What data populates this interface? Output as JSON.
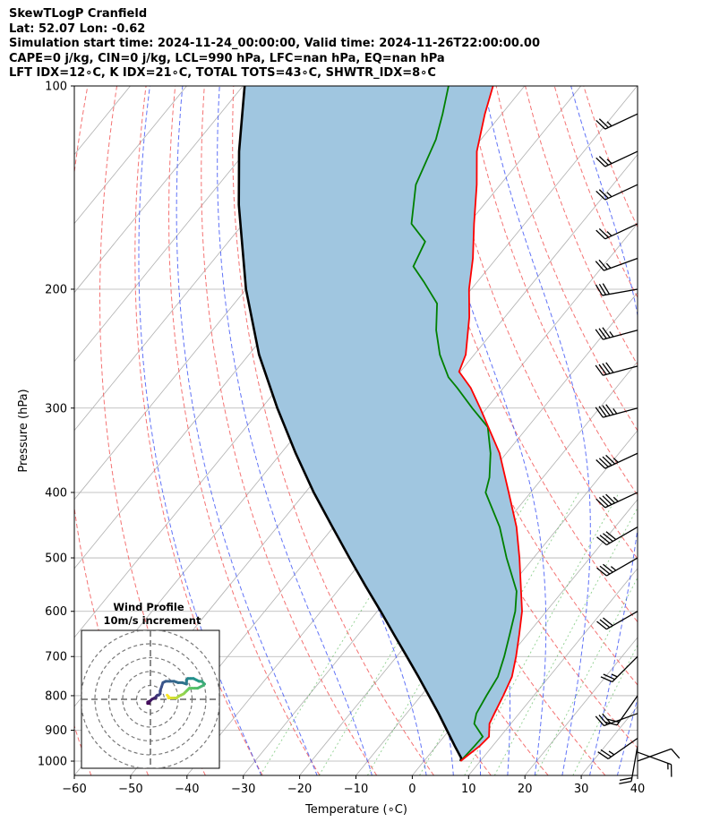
{
  "header": {
    "line1": "SkewTLogP Cranfield",
    "line2": "Lat: 52.07   Lon: -0.62",
    "line3": "Simulation start time: 2024-11-24_00:00:00, Valid time: 2024-11-26T22:00:00.00",
    "line4": "CAPE=0 j/kg, CIN=0 j/kg, LCL=990 hPa, LFC=nan hPa, EQ=nan hPa",
    "line5": "LFT IDX=12∘C, K IDX=21∘C, TOTAL TOTS=43∘C, SHWTR_IDX=8∘C"
  },
  "chart_data": {
    "type": "line",
    "title": "SkewTLogP Cranfield",
    "xlabel": "Temperature (∘C)",
    "ylabel": "Pressure (hPa)",
    "xlim": [
      -60,
      40
    ],
    "ylim": [
      1050,
      100
    ],
    "y_scale": "log",
    "skew": true,
    "grid": true,
    "x_ticks": [
      -60,
      -50,
      -40,
      -30,
      -20,
      -10,
      0,
      10,
      20,
      30,
      40
    ],
    "x_tick_labels": [
      "−60",
      "−50",
      "−40",
      "−30",
      "−20",
      "−10",
      "0",
      "10",
      "20",
      "30",
      "40"
    ],
    "y_ticks": [
      1000,
      900,
      800,
      700,
      600,
      500,
      400,
      300,
      200,
      100
    ],
    "y_tick_labels": [
      "1000",
      "900",
      "800",
      "700",
      "600",
      "500",
      "400",
      "300",
      "200",
      "100"
    ],
    "series": [
      {
        "key": "temperature",
        "color": "#ff0000",
        "points": [
          [
            1000,
            6.5
          ],
          [
            950,
            7.7
          ],
          [
            920,
            8.0
          ],
          [
            880,
            6.2
          ],
          [
            850,
            5.6
          ],
          [
            800,
            4.6
          ],
          [
            750,
            3.4
          ],
          [
            700,
            1.2
          ],
          [
            650,
            -1.4
          ],
          [
            600,
            -4.3
          ],
          [
            560,
            -7.4
          ],
          [
            500,
            -12.5
          ],
          [
            450,
            -17.5
          ],
          [
            400,
            -23.9
          ],
          [
            350,
            -31.2
          ],
          [
            300,
            -41.2
          ],
          [
            280,
            -45.8
          ],
          [
            265,
            -50.2
          ],
          [
            250,
            -51.5
          ],
          [
            220,
            -56.3
          ],
          [
            200,
            -60.4
          ],
          [
            180,
            -64.2
          ],
          [
            160,
            -69.0
          ],
          [
            140,
            -74.2
          ],
          [
            125,
            -79.0
          ],
          [
            110,
            -83.0
          ],
          [
            100,
            -85.6
          ]
        ]
      },
      {
        "key": "dewpoint",
        "color": "#008000",
        "points": [
          [
            1000,
            6.5
          ],
          [
            950,
            6.8
          ],
          [
            920,
            6.9
          ],
          [
            880,
            3.5
          ],
          [
            850,
            2.4
          ],
          [
            800,
            1.6
          ],
          [
            750,
            0.9
          ],
          [
            700,
            -0.9
          ],
          [
            650,
            -3.1
          ],
          [
            600,
            -5.5
          ],
          [
            560,
            -8.2
          ],
          [
            500,
            -14.8
          ],
          [
            450,
            -20.5
          ],
          [
            400,
            -28.0
          ],
          [
            380,
            -29.5
          ],
          [
            350,
            -32.8
          ],
          [
            320,
            -37.1
          ],
          [
            300,
            -42.6
          ],
          [
            280,
            -48.2
          ],
          [
            270,
            -51.3
          ],
          [
            250,
            -56.1
          ],
          [
            230,
            -60.3
          ],
          [
            210,
            -64.0
          ],
          [
            195,
            -69.5
          ],
          [
            185,
            -73.6
          ],
          [
            170,
            -75.1
          ],
          [
            160,
            -80.1
          ],
          [
            140,
            -85.0
          ],
          [
            120,
            -88.0
          ],
          [
            110,
            -90.5
          ],
          [
            100,
            -93.5
          ]
        ]
      },
      {
        "key": "parcel",
        "color": "#000000",
        "points": [
          [
            1000,
            6.5
          ],
          [
            990,
            6.2
          ],
          [
            950,
            3.3
          ],
          [
            900,
            -0.4
          ],
          [
            850,
            -4.3
          ],
          [
            800,
            -8.6
          ],
          [
            750,
            -13.2
          ],
          [
            700,
            -18.2
          ],
          [
            650,
            -23.6
          ],
          [
            600,
            -29.4
          ],
          [
            550,
            -35.8
          ],
          [
            500,
            -42.7
          ],
          [
            450,
            -50.2
          ],
          [
            400,
            -58.5
          ],
          [
            350,
            -67.4
          ],
          [
            300,
            -77.2
          ],
          [
            250,
            -88.2
          ],
          [
            200,
            -100.0
          ],
          [
            150,
            -113.5
          ],
          [
            125,
            -121.2
          ],
          [
            100,
            -129.7
          ]
        ]
      }
    ],
    "fill_between": {
      "between": [
        "temperature",
        "parcel"
      ],
      "color": "#a0c6e0"
    },
    "dry_adiabats_c": [
      -60,
      -50,
      -40,
      -30,
      -20,
      -10,
      0,
      10,
      20,
      30,
      40,
      50,
      60,
      70,
      80,
      90,
      100,
      110,
      120
    ],
    "moist_adiabats_c": [
      -30,
      -20,
      -10,
      0,
      5,
      10,
      15,
      20,
      25,
      30,
      35
    ],
    "mixing_ratios_gkg": [
      0.4,
      1.0,
      2.0,
      4.0,
      7.0,
      10.0,
      16.0,
      24.0
    ],
    "wind_barbs": [
      {
        "p": 1000,
        "speed_kt": 10,
        "dir_deg": 70
      },
      {
        "p": 970,
        "speed_kt": 15,
        "dir_deg": 110
      },
      {
        "p": 950,
        "speed_kt": 20,
        "dir_deg": 190
      },
      {
        "p": 925,
        "speed_kt": 25,
        "dir_deg": 235
      },
      {
        "p": 850,
        "speed_kt": 30,
        "dir_deg": 250
      },
      {
        "p": 800,
        "speed_kt": 20,
        "dir_deg": 215
      },
      {
        "p": 700,
        "speed_kt": 25,
        "dir_deg": 225
      },
      {
        "p": 600,
        "speed_kt": 30,
        "dir_deg": 240
      },
      {
        "p": 500,
        "speed_kt": 35,
        "dir_deg": 240
      },
      {
        "p": 450,
        "speed_kt": 40,
        "dir_deg": 240
      },
      {
        "p": 400,
        "speed_kt": 45,
        "dir_deg": 245
      },
      {
        "p": 350,
        "speed_kt": 45,
        "dir_deg": 245
      },
      {
        "p": 300,
        "speed_kt": 45,
        "dir_deg": 255
      },
      {
        "p": 260,
        "speed_kt": 40,
        "dir_deg": 255
      },
      {
        "p": 230,
        "speed_kt": 35,
        "dir_deg": 255
      },
      {
        "p": 200,
        "speed_kt": 30,
        "dir_deg": 260
      },
      {
        "p": 180,
        "speed_kt": 25,
        "dir_deg": 250
      },
      {
        "p": 160,
        "speed_kt": 25,
        "dir_deg": 245
      },
      {
        "p": 140,
        "speed_kt": 25,
        "dir_deg": 245
      },
      {
        "p": 125,
        "speed_kt": 25,
        "dir_deg": 245
      },
      {
        "p": 110,
        "speed_kt": 25,
        "dir_deg": 245
      }
    ],
    "hodograph": {
      "title": "Wind Profile",
      "subtitle": "10m/s increment",
      "ring_spacing_ms": 10,
      "points_uv": [
        [
          -1,
          -3
        ],
        [
          -2,
          -3
        ],
        [
          -2,
          -2
        ],
        [
          0,
          -1
        ],
        [
          1,
          0
        ],
        [
          3,
          1
        ],
        [
          4,
          1
        ],
        [
          4,
          2
        ],
        [
          5,
          3
        ],
        [
          6,
          3
        ],
        [
          7,
          4
        ],
        [
          7,
          6
        ],
        [
          8,
          9
        ],
        [
          9,
          12
        ],
        [
          11,
          13
        ],
        [
          14,
          13
        ],
        [
          17,
          13
        ],
        [
          20,
          12
        ],
        [
          23,
          12
        ],
        [
          26,
          11
        ],
        [
          26,
          13
        ],
        [
          26,
          14
        ],
        [
          27,
          15
        ],
        [
          29,
          15
        ],
        [
          31,
          15
        ],
        [
          33,
          14
        ],
        [
          35,
          13
        ],
        [
          36,
          13
        ],
        [
          37,
          13
        ],
        [
          38,
          12
        ],
        [
          39,
          11
        ],
        [
          38,
          10
        ],
        [
          36,
          9
        ],
        [
          34,
          8
        ],
        [
          32,
          8
        ],
        [
          30,
          8
        ],
        [
          28,
          8
        ],
        [
          27,
          7
        ],
        [
          26,
          6
        ],
        [
          25,
          5
        ],
        [
          24,
          4
        ],
        [
          22,
          3
        ],
        [
          20,
          2
        ],
        [
          19,
          1
        ],
        [
          18,
          1
        ],
        [
          16,
          1
        ],
        [
          14,
          1
        ],
        [
          13,
          1
        ],
        [
          13,
          2
        ],
        [
          12,
          3
        ]
      ]
    }
  }
}
